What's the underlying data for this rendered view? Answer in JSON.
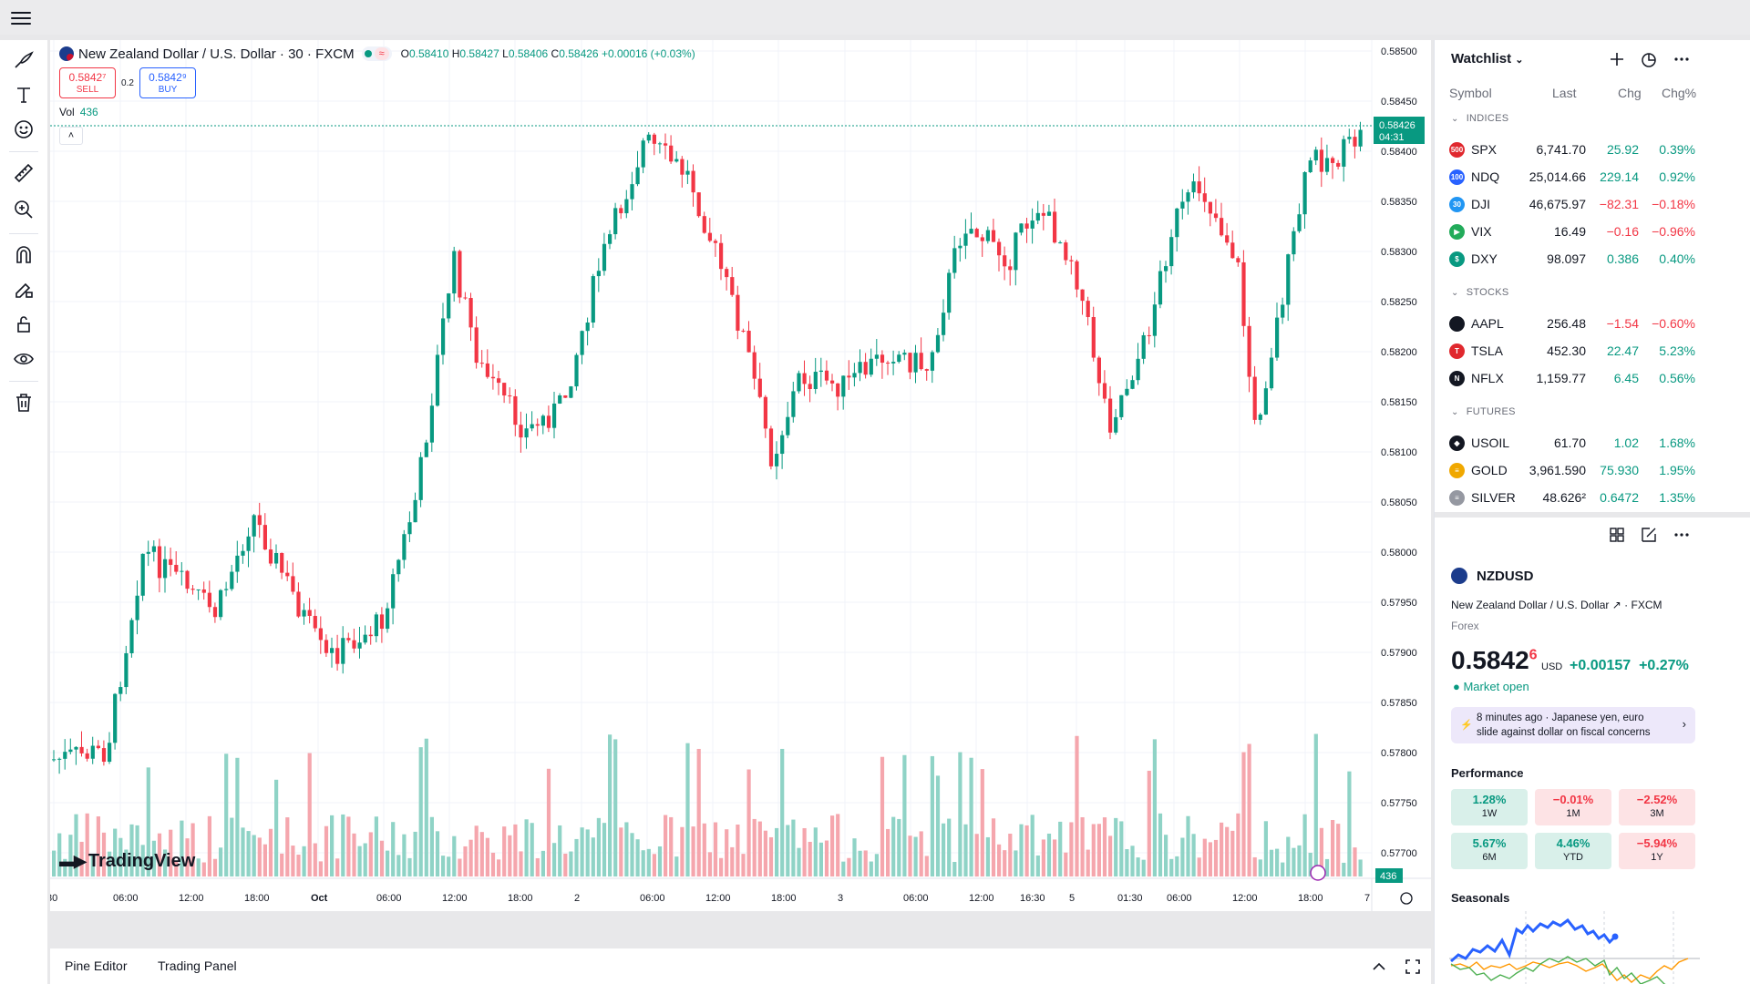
{
  "chart": {
    "legend_title": "New Zealand Dollar / U.S. Dollar · 30 · FXCM",
    "wave_icon": "≈",
    "ohlc": {
      "o_label": "O",
      "o": "0.58410",
      "h_label": "H",
      "h": "0.58427",
      "l_label": "L",
      "l": "0.58406",
      "c_label": "C",
      "c": "0.58426",
      "change": "+0.00016 (+0.03%)"
    },
    "sell_price": "0.5842⁷",
    "sell_label": "SELL",
    "spread": "0.2",
    "buy_price": "0.5842⁹",
    "buy_label": "BUY",
    "vol_label": "Vol",
    "vol_value": "436",
    "collapse_icon": "˄",
    "price_axis_labels": [
      "0.58500",
      "0.58450",
      "0.58400",
      "0.58350",
      "0.58300",
      "0.58250",
      "0.58200",
      "0.58150",
      "0.58100",
      "0.58050",
      "0.58000",
      "0.57950",
      "0.57900",
      "0.57850",
      "0.57800",
      "0.57750",
      "0.57700"
    ],
    "time_axis_labels": [
      "30",
      "06:00",
      "12:00",
      "18:00",
      "Oct",
      "06:00",
      "12:00",
      "18:00",
      "2",
      "06:00",
      "12:00",
      "18:00",
      "3",
      "06:00",
      "12:00",
      "16:30",
      "5",
      "01:30",
      "06:00",
      "12:00",
      "18:00",
      "7"
    ],
    "last_price_tag": "0.58426",
    "countdown": "04:31",
    "volume_tag": "436",
    "logo_text": "TradingView",
    "up_color": "#089981",
    "down_color": "#f23645"
  },
  "bottom": {
    "tab1": "Pine Editor",
    "tab2": "Trading Panel"
  },
  "watchlist": {
    "title": "Watchlist",
    "columns": {
      "symbol": "Symbol",
      "last": "Last",
      "chg": "Chg",
      "pct": "Chg%"
    },
    "sections": [
      {
        "name": "INDICES",
        "rows": [
          {
            "icon": "500",
            "color": "#e0282e",
            "sym": "SPX",
            "last": "6,741.70",
            "chg": "25.92",
            "pct": "0.39%",
            "dir": "up"
          },
          {
            "icon": "100",
            "color": "#2962ff",
            "sym": "NDQ",
            "last": "25,014.66",
            "chg": "229.14",
            "pct": "0.92%",
            "dir": "up"
          },
          {
            "icon": "30",
            "color": "#2196f3",
            "sym": "DJI",
            "last": "46,675.97",
            "chg": "−82.31",
            "pct": "−0.18%",
            "dir": "dn"
          },
          {
            "icon": "▶",
            "color": "#22ab5a",
            "sym": "VIX",
            "last": "16.49",
            "chg": "−0.16",
            "pct": "−0.96%",
            "dir": "dn"
          },
          {
            "icon": "$",
            "color": "#089981",
            "sym": "DXY",
            "last": "98.097",
            "chg": "0.386",
            "pct": "0.40%",
            "dir": "up"
          }
        ]
      },
      {
        "name": "STOCKS",
        "rows": [
          {
            "icon": "",
            "color": "#131722",
            "sym": "AAPL",
            "last": "256.48",
            "chg": "−1.54",
            "pct": "−0.60%",
            "dir": "dn"
          },
          {
            "icon": "T",
            "color": "#e0282e",
            "sym": "TSLA",
            "last": "452.30",
            "chg": "22.47",
            "pct": "5.23%",
            "dir": "up"
          },
          {
            "icon": "N",
            "color": "#131722",
            "sym": "NFLX",
            "last": "1,159.77",
            "chg": "6.45",
            "pct": "0.56%",
            "dir": "up"
          }
        ]
      },
      {
        "name": "FUTURES",
        "rows": [
          {
            "icon": "◆",
            "color": "#131722",
            "sym": "USOIL",
            "last": "61.70",
            "chg": "1.02",
            "pct": "1.68%",
            "dir": "up"
          },
          {
            "icon": "≡",
            "color": "#f0a800",
            "sym": "GOLD",
            "last": "3,961.590",
            "chg": "75.930",
            "pct": "1.95%",
            "dir": "up"
          },
          {
            "icon": "≡",
            "color": "#9598a1",
            "sym": "SILVER",
            "last": "48.626²",
            "chg": "0.6472",
            "pct": "1.35%",
            "dir": "up"
          }
        ]
      }
    ]
  },
  "details": {
    "symbol": "NZDUSD",
    "name": "New Zealand Dollar / U.S. Dollar",
    "link_icon": "↗",
    "exchange": "FXCM",
    "type": "Forex",
    "price": "0.5842",
    "price_sup": "6",
    "currency": "USD",
    "change": "+0.00157",
    "change_pct": "+0.27%",
    "status": "Market open",
    "news_time": "8 minutes ago",
    "news_text": "Japanese yen, euro slide against dollar on fiscal concerns",
    "performance_title": "Performance",
    "performance": [
      {
        "value": "1.28%",
        "label": "1W",
        "dir": "g"
      },
      {
        "value": "−0.01%",
        "label": "1M",
        "dir": "r"
      },
      {
        "value": "−2.52%",
        "label": "3M",
        "dir": "r"
      },
      {
        "value": "5.67%",
        "label": "6M",
        "dir": "g"
      },
      {
        "value": "4.46%",
        "label": "YTD",
        "dir": "g"
      },
      {
        "value": "−5.94%",
        "label": "1Y",
        "dir": "r"
      }
    ],
    "seasonals_title": "Seasonals"
  }
}
